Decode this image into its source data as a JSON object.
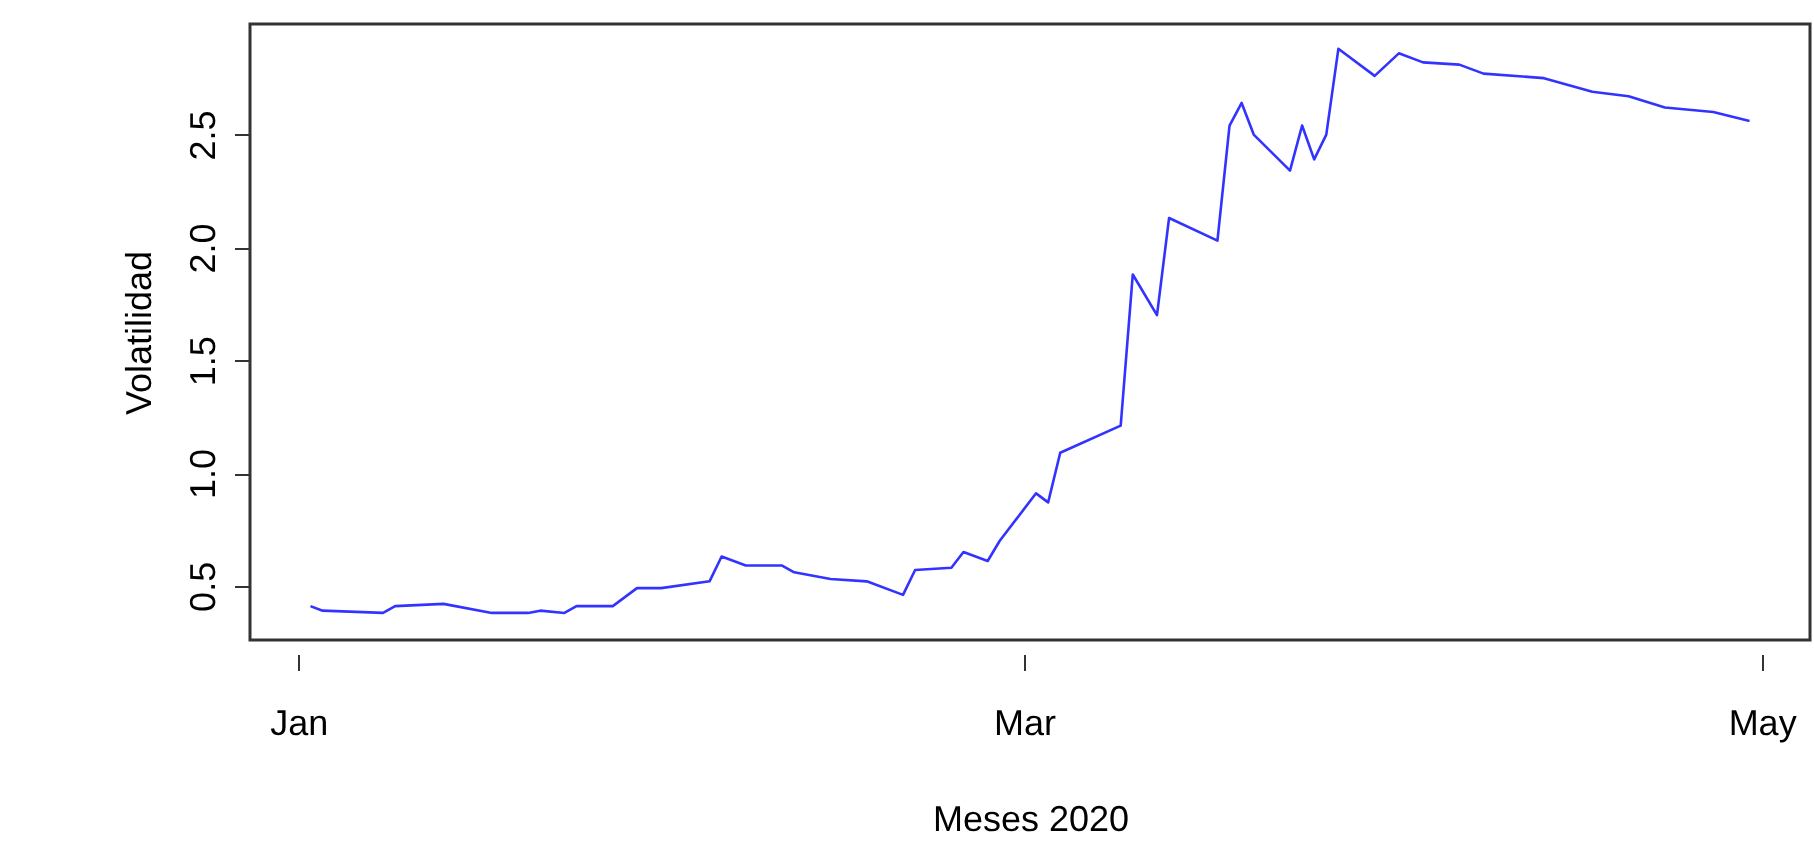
{
  "chart_data": {
    "type": "line",
    "xlabel": "Meses 2020",
    "ylabel": "Volatilidad",
    "x": [
      "2020-01-02",
      "2020-01-03",
      "2020-01-08",
      "2020-01-09",
      "2020-01-13",
      "2020-01-17",
      "2020-01-20",
      "2020-01-21",
      "2020-01-23",
      "2020-01-24",
      "2020-01-27",
      "2020-01-29",
      "2020-01-31",
      "2020-02-04",
      "2020-02-05",
      "2020-02-07",
      "2020-02-10",
      "2020-02-11",
      "2020-02-12",
      "2020-02-14",
      "2020-02-17",
      "2020-02-20",
      "2020-02-21",
      "2020-02-24",
      "2020-02-25",
      "2020-02-27",
      "2020-02-28",
      "2020-03-02",
      "2020-03-03",
      "2020-03-04",
      "2020-03-09",
      "2020-03-10",
      "2020-03-12",
      "2020-03-13",
      "2020-03-17",
      "2020-03-18",
      "2020-03-19",
      "2020-03-20",
      "2020-03-23",
      "2020-03-24",
      "2020-03-25",
      "2020-03-26",
      "2020-03-27",
      "2020-03-30",
      "2020-04-01",
      "2020-04-03",
      "2020-04-06",
      "2020-04-08",
      "2020-04-13",
      "2020-04-17",
      "2020-04-20",
      "2020-04-23",
      "2020-04-27",
      "2020-04-30"
    ],
    "series": [
      {
        "color": "#3333ff",
        "values": [
          0.41,
          0.39,
          0.38,
          0.41,
          0.42,
          0.38,
          0.38,
          0.39,
          0.38,
          0.41,
          0.41,
          0.49,
          0.49,
          0.52,
          0.63,
          0.59,
          0.59,
          0.56,
          0.55,
          0.53,
          0.52,
          0.46,
          0.57,
          0.58,
          0.65,
          0.61,
          0.7,
          0.91,
          0.87,
          1.09,
          1.21,
          1.88,
          1.7,
          2.13,
          2.03,
          2.54,
          2.64,
          2.5,
          2.34,
          2.54,
          2.39,
          2.5,
          2.88,
          2.76,
          2.86,
          2.82,
          2.81,
          2.77,
          2.75,
          2.69,
          2.67,
          2.62,
          2.6,
          2.56
        ]
      }
    ],
    "xlim": [
      "2019-12-28",
      "2020-05-05"
    ],
    "xticks": [
      {
        "value": "2020-01-01",
        "label": "Jan"
      },
      {
        "value": "2020-03-01",
        "label": "Mar"
      },
      {
        "value": "2020-05-01",
        "label": "May"
      }
    ],
    "ylim": [
      0.26,
      2.99
    ],
    "yticks": [
      0.5,
      {
        "value": 1,
        "label": "1.0"
      },
      1.5,
      {
        "value": 2,
        "label": "2.0"
      },
      2.5
    ],
    "grid": false,
    "marker": "none",
    "line_style": "solid"
  }
}
